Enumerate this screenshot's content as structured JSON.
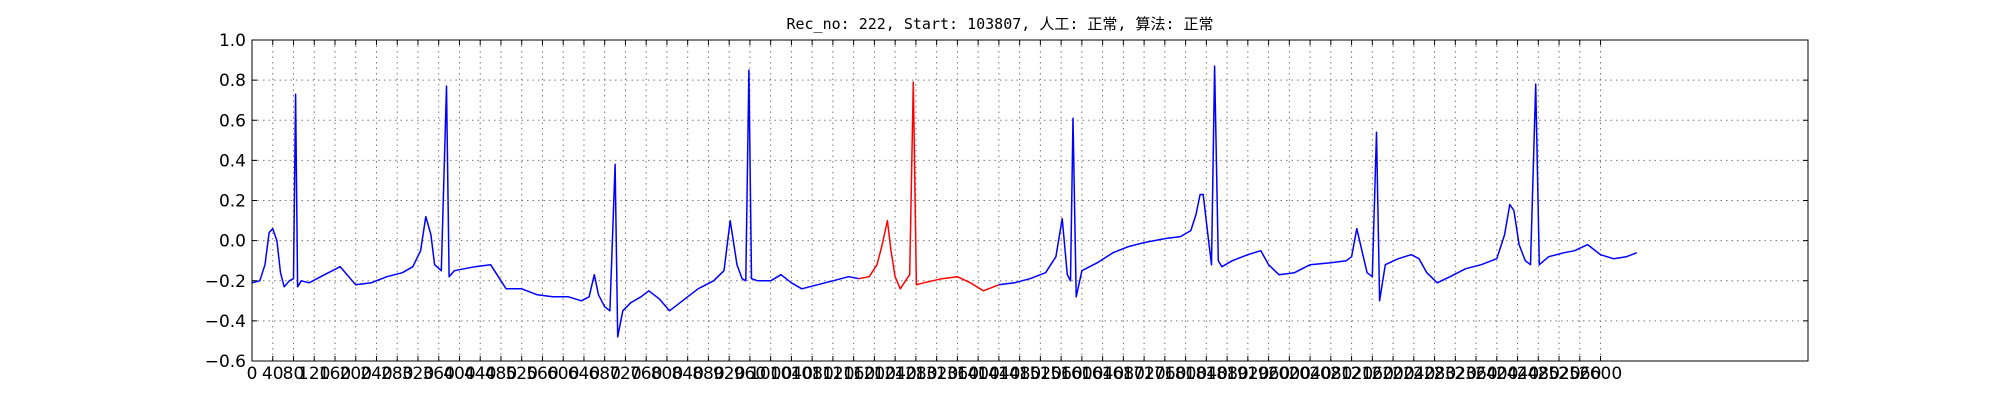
{
  "chart_data": {
    "type": "line",
    "title": "Rec_no: 222, Start: 103807, 人工: 正常, 算法: 正常",
    "xlabel": "",
    "ylabel": "",
    "xlim": [
      0,
      3000
    ],
    "ylim": [
      -0.6,
      1.0
    ],
    "grid": true,
    "grid_style": "dotted",
    "colors": {
      "primary_series": "#0000ff",
      "highlight_series": "#ff0000",
      "axes": "#000000",
      "grid": "#777777"
    },
    "x_ticks": [
      0,
      40,
      80,
      120,
      160,
      200,
      240,
      280,
      320,
      360,
      400,
      440,
      480,
      520,
      560,
      600,
      640,
      680,
      720,
      760,
      800,
      840,
      880,
      920,
      960,
      1000,
      1040,
      1080,
      1120,
      1160,
      1200,
      1240,
      1280,
      1320,
      1360,
      1400,
      1440,
      1480,
      1520,
      1560,
      1600,
      1640,
      1680,
      1720,
      1760,
      1800,
      1840,
      1880,
      1920,
      1960,
      2000,
      2040,
      2080,
      2120,
      2160,
      2200,
      2240,
      2280,
      2320,
      2360,
      2400,
      2440,
      2480,
      2520,
      2560,
      2600
    ],
    "y_ticks": [
      -0.6,
      -0.4,
      -0.2,
      0.0,
      0.2,
      0.4,
      0.6,
      0.8,
      1.0
    ],
    "y_tick_labels": [
      "−0.6",
      "−0.4",
      "−0.2",
      "0.0",
      "0.2",
      "0.4",
      "0.6",
      "0.8",
      "1.0"
    ],
    "series": [
      {
        "color": "#0000ff",
        "points": [
          [
            0,
            -0.21
          ],
          [
            15,
            -0.2
          ],
          [
            25,
            -0.12
          ],
          [
            33,
            0.04
          ],
          [
            40,
            0.06
          ],
          [
            48,
            0.0
          ],
          [
            55,
            -0.16
          ],
          [
            62,
            -0.23
          ],
          [
            72,
            -0.2
          ],
          [
            80,
            -0.19
          ],
          [
            84,
            0.73
          ],
          [
            88,
            -0.23
          ],
          [
            95,
            -0.2
          ],
          [
            110,
            -0.21
          ],
          [
            140,
            -0.17
          ],
          [
            170,
            -0.13
          ],
          [
            180,
            -0.16
          ],
          [
            200,
            -0.22
          ],
          [
            230,
            -0.21
          ],
          [
            260,
            -0.18
          ],
          [
            290,
            -0.16
          ],
          [
            310,
            -0.13
          ],
          [
            325,
            -0.05
          ],
          [
            335,
            0.12
          ],
          [
            345,
            0.03
          ],
          [
            352,
            -0.12
          ],
          [
            365,
            -0.15
          ],
          [
            375,
            0.77
          ],
          [
            380,
            -0.18
          ],
          [
            390,
            -0.15
          ],
          [
            410,
            -0.14
          ],
          [
            430,
            -0.13
          ],
          [
            460,
            -0.12
          ],
          [
            490,
            -0.24
          ],
          [
            520,
            -0.24
          ],
          [
            550,
            -0.27
          ],
          [
            580,
            -0.28
          ],
          [
            610,
            -0.28
          ],
          [
            635,
            -0.3
          ],
          [
            650,
            -0.28
          ],
          [
            660,
            -0.17
          ],
          [
            668,
            -0.27
          ],
          [
            680,
            -0.33
          ],
          [
            690,
            -0.35
          ],
          [
            700,
            0.38
          ],
          [
            705,
            -0.48
          ],
          [
            715,
            -0.35
          ],
          [
            730,
            -0.31
          ],
          [
            750,
            -0.28
          ],
          [
            765,
            -0.25
          ],
          [
            785,
            -0.29
          ],
          [
            805,
            -0.35
          ],
          [
            830,
            -0.3
          ],
          [
            860,
            -0.24
          ],
          [
            890,
            -0.2
          ],
          [
            910,
            -0.15
          ],
          [
            922,
            0.1
          ],
          [
            935,
            -0.12
          ],
          [
            945,
            -0.19
          ],
          [
            952,
            -0.2
          ],
          [
            958,
            0.85
          ],
          [
            963,
            -0.19
          ],
          [
            975,
            -0.2
          ],
          [
            1000,
            -0.2
          ],
          [
            1020,
            -0.17
          ],
          [
            1040,
            -0.21
          ],
          [
            1060,
            -0.24
          ],
          [
            1090,
            -0.22
          ],
          [
            1120,
            -0.2
          ],
          [
            1150,
            -0.18
          ],
          [
            1170,
            -0.19
          ]
        ]
      },
      {
        "color": "#ff0000",
        "points": [
          [
            1170,
            -0.19
          ],
          [
            1190,
            -0.18
          ],
          [
            1205,
            -0.12
          ],
          [
            1215,
            -0.02
          ],
          [
            1225,
            0.1
          ],
          [
            1232,
            -0.05
          ],
          [
            1240,
            -0.18
          ],
          [
            1250,
            -0.24
          ],
          [
            1260,
            -0.2
          ],
          [
            1268,
            -0.17
          ],
          [
            1275,
            0.79
          ],
          [
            1281,
            -0.22
          ],
          [
            1295,
            -0.21
          ],
          [
            1330,
            -0.19
          ],
          [
            1360,
            -0.18
          ],
          [
            1385,
            -0.21
          ],
          [
            1410,
            -0.25
          ],
          [
            1440,
            -0.22
          ]
        ]
      },
      {
        "color": "#0000ff",
        "points": [
          [
            1440,
            -0.22
          ],
          [
            1470,
            -0.21
          ],
          [
            1500,
            -0.19
          ],
          [
            1530,
            -0.16
          ],
          [
            1550,
            -0.08
          ],
          [
            1562,
            0.11
          ],
          [
            1572,
            -0.17
          ],
          [
            1578,
            -0.2
          ],
          [
            1583,
            0.61
          ],
          [
            1589,
            -0.28
          ],
          [
            1600,
            -0.15
          ],
          [
            1630,
            -0.11
          ],
          [
            1660,
            -0.06
          ],
          [
            1690,
            -0.03
          ],
          [
            1720,
            -0.01
          ],
          [
            1760,
            0.01
          ],
          [
            1790,
            0.02
          ],
          [
            1810,
            0.05
          ],
          [
            1820,
            0.13
          ],
          [
            1828,
            0.23
          ],
          [
            1834,
            0.23
          ],
          [
            1842,
            0.05
          ],
          [
            1850,
            -0.12
          ],
          [
            1856,
            0.87
          ],
          [
            1863,
            -0.1
          ],
          [
            1870,
            -0.13
          ],
          [
            1890,
            -0.1
          ],
          [
            1920,
            -0.07
          ],
          [
            1945,
            -0.05
          ],
          [
            1960,
            -0.12
          ],
          [
            1980,
            -0.17
          ],
          [
            2010,
            -0.16
          ],
          [
            2040,
            -0.12
          ],
          [
            2080,
            -0.11
          ],
          [
            2110,
            -0.1
          ],
          [
            2120,
            -0.08
          ],
          [
            2130,
            0.06
          ],
          [
            2140,
            -0.05
          ],
          [
            2150,
            -0.16
          ],
          [
            2160,
            -0.18
          ],
          [
            2168,
            0.54
          ],
          [
            2174,
            -0.3
          ],
          [
            2185,
            -0.12
          ],
          [
            2210,
            -0.09
          ],
          [
            2235,
            -0.07
          ],
          [
            2250,
            -0.09
          ],
          [
            2265,
            -0.16
          ],
          [
            2285,
            -0.21
          ],
          [
            2310,
            -0.18
          ],
          [
            2340,
            -0.14
          ],
          [
            2370,
            -0.12
          ],
          [
            2400,
            -0.09
          ],
          [
            2415,
            0.03
          ],
          [
            2425,
            0.18
          ],
          [
            2433,
            0.15
          ],
          [
            2443,
            -0.02
          ],
          [
            2455,
            -0.1
          ],
          [
            2465,
            -0.12
          ],
          [
            2475,
            0.78
          ],
          [
            2482,
            -0.12
          ],
          [
            2500,
            -0.08
          ],
          [
            2530,
            -0.06
          ],
          [
            2550,
            -0.05
          ],
          [
            2575,
            -0.02
          ],
          [
            2600,
            -0.07
          ],
          [
            2625,
            -0.09
          ],
          [
            2650,
            -0.08
          ],
          [
            2670,
            -0.06
          ]
        ]
      }
    ]
  }
}
